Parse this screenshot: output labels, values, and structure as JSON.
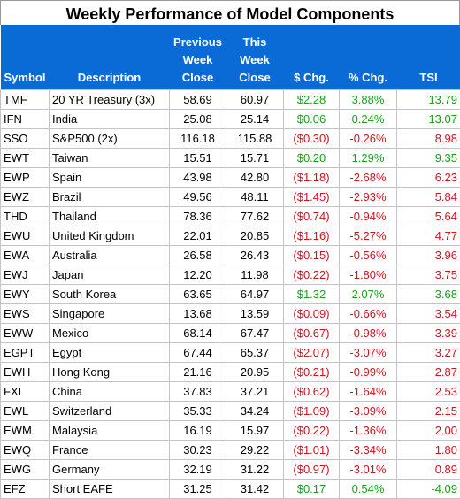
{
  "title": "Weekly Performance of Model Components",
  "headers": {
    "symbol": "Symbol",
    "description": "Description",
    "previous_close": [
      "Previous",
      "Week",
      "Close"
    ],
    "this_close": [
      "This",
      "Week",
      "Close"
    ],
    "dollar_change": "$ Chg.",
    "pct_change": "% Chg.",
    "tsi": "TSI"
  },
  "colors": {
    "header_bg": "#0a6ad6",
    "positive": "#18a018",
    "negative": "#c8161d"
  },
  "rows": [
    {
      "symbol": "TMF",
      "description": "20 YR Treasury (3x)",
      "prev": "58.69",
      "this": "60.97",
      "chg": "$2.28",
      "pct": "3.88%",
      "tsi": "13.79",
      "dir": "pos"
    },
    {
      "symbol": "IFN",
      "description": "India",
      "prev": "25.08",
      "this": "25.14",
      "chg": "$0.06",
      "pct": "0.24%",
      "tsi": "13.07",
      "dir": "pos"
    },
    {
      "symbol": "SSO",
      "description": "S&P500 (2x)",
      "prev": "116.18",
      "this": "115.88",
      "chg": "($0.30)",
      "pct": "-0.26%",
      "tsi": "8.98",
      "dir": "neg"
    },
    {
      "symbol": "EWT",
      "description": "Taiwan",
      "prev": "15.51",
      "this": "15.71",
      "chg": "$0.20",
      "pct": "1.29%",
      "tsi": "9.35",
      "dir": "pos"
    },
    {
      "symbol": "EWP",
      "description": "Spain",
      "prev": "43.98",
      "this": "42.80",
      "chg": "($1.18)",
      "pct": "-2.68%",
      "tsi": "6.23",
      "dir": "neg"
    },
    {
      "symbol": "EWZ",
      "description": "Brazil",
      "prev": "49.56",
      "this": "48.11",
      "chg": "($1.45)",
      "pct": "-2.93%",
      "tsi": "5.84",
      "dir": "neg"
    },
    {
      "symbol": "THD",
      "description": "Thailand",
      "prev": "78.36",
      "this": "77.62",
      "chg": "($0.74)",
      "pct": "-0.94%",
      "tsi": "5.64",
      "dir": "neg"
    },
    {
      "symbol": "EWU",
      "description": "United Kingdom",
      "prev": "22.01",
      "this": "20.85",
      "chg": "($1.16)",
      "pct": "-5.27%",
      "tsi": "4.77",
      "dir": "neg"
    },
    {
      "symbol": "EWA",
      "description": "Australia",
      "prev": "26.58",
      "this": "26.43",
      "chg": "($0.15)",
      "pct": "-0.56%",
      "tsi": "3.96",
      "dir": "neg"
    },
    {
      "symbol": "EWJ",
      "description": "Japan",
      "prev": "12.20",
      "this": "11.98",
      "chg": "($0.22)",
      "pct": "-1.80%",
      "tsi": "3.75",
      "dir": "neg"
    },
    {
      "symbol": "EWY",
      "description": "South Korea",
      "prev": "63.65",
      "this": "64.97",
      "chg": "$1.32",
      "pct": "2.07%",
      "tsi": "3.68",
      "dir": "pos"
    },
    {
      "symbol": "EWS",
      "description": "Singapore",
      "prev": "13.68",
      "this": "13.59",
      "chg": "($0.09)",
      "pct": "-0.66%",
      "tsi": "3.54",
      "dir": "neg"
    },
    {
      "symbol": "EWW",
      "description": "Mexico",
      "prev": "68.14",
      "this": "67.47",
      "chg": "($0.67)",
      "pct": "-0.98%",
      "tsi": "3.39",
      "dir": "neg"
    },
    {
      "symbol": "EGPT",
      "description": "Egypt",
      "prev": "67.44",
      "this": "65.37",
      "chg": "($2.07)",
      "pct": "-3.07%",
      "tsi": "3.27",
      "dir": "neg"
    },
    {
      "symbol": "EWH",
      "description": "Hong Kong",
      "prev": "21.16",
      "this": "20.95",
      "chg": "($0.21)",
      "pct": "-0.99%",
      "tsi": "2.87",
      "dir": "neg"
    },
    {
      "symbol": "FXI",
      "description": "China",
      "prev": "37.83",
      "this": "37.21",
      "chg": "($0.62)",
      "pct": "-1.64%",
      "tsi": "2.53",
      "dir": "neg"
    },
    {
      "symbol": "EWL",
      "description": "Switzerland",
      "prev": "35.33",
      "this": "34.24",
      "chg": "($1.09)",
      "pct": "-3.09%",
      "tsi": "2.15",
      "dir": "neg"
    },
    {
      "symbol": "EWM",
      "description": "Malaysia",
      "prev": "16.19",
      "this": "15.97",
      "chg": "($0.22)",
      "pct": "-1.36%",
      "tsi": "2.00",
      "dir": "neg"
    },
    {
      "symbol": "EWQ",
      "description": "France",
      "prev": "30.23",
      "this": "29.22",
      "chg": "($1.01)",
      "pct": "-3.34%",
      "tsi": "1.80",
      "dir": "neg"
    },
    {
      "symbol": "EWG",
      "description": "Germany",
      "prev": "32.19",
      "this": "31.22",
      "chg": "($0.97)",
      "pct": "-3.01%",
      "tsi": "0.89",
      "dir": "neg"
    },
    {
      "symbol": "EFZ",
      "description": "Short EAFE",
      "prev": "31.25",
      "this": "31.42",
      "chg": "$0.17",
      "pct": "0.54%",
      "tsi": "-4.09",
      "dir": "pos"
    }
  ]
}
